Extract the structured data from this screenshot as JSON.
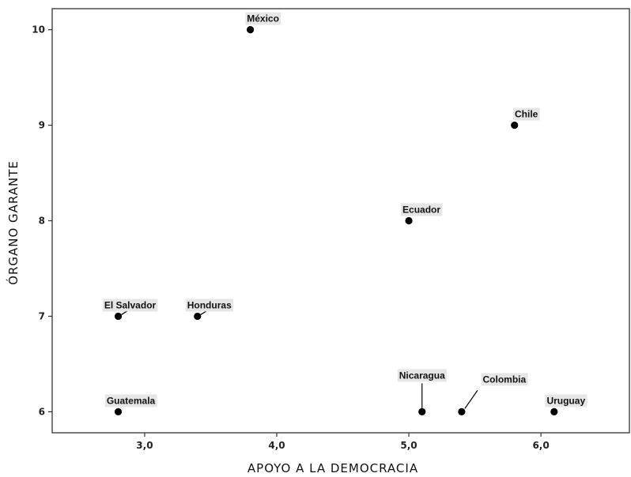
{
  "chart_data": {
    "type": "scatter",
    "title": "",
    "xlabel": "APOYO  A LA DEMOCRACIA",
    "ylabel": "ÓRGANO GARANTE",
    "xlim": [
      2.3,
      6.67
    ],
    "ylim": [
      5.78,
      10.22
    ],
    "x_ticks": [
      {
        "value": 3.0,
        "label": "3,0"
      },
      {
        "value": 4.0,
        "label": "4,0"
      },
      {
        "value": 5.0,
        "label": "5,0"
      },
      {
        "value": 6.0,
        "label": "6,0"
      }
    ],
    "y_ticks": [
      {
        "value": 6,
        "label": "6"
      },
      {
        "value": 7,
        "label": "7"
      },
      {
        "value": 8,
        "label": "8"
      },
      {
        "value": 9,
        "label": "9"
      },
      {
        "value": 10,
        "label": "10"
      }
    ],
    "grid": false,
    "points": [
      {
        "label": "México",
        "x": 3.8,
        "y": 10
      },
      {
        "label": "Chile",
        "x": 5.8,
        "y": 9
      },
      {
        "label": "Ecuador",
        "x": 5.0,
        "y": 8
      },
      {
        "label": "El Salvador",
        "x": 2.8,
        "y": 7
      },
      {
        "label": "Honduras",
        "x": 3.4,
        "y": 7
      },
      {
        "label": "Guatemala",
        "x": 2.8,
        "y": 6
      },
      {
        "label": "Nicaragua",
        "x": 5.1,
        "y": 6
      },
      {
        "label": "Colombia",
        "x": 5.4,
        "y": 6
      },
      {
        "label": "Uruguay",
        "x": 6.1,
        "y": 6
      }
    ]
  }
}
